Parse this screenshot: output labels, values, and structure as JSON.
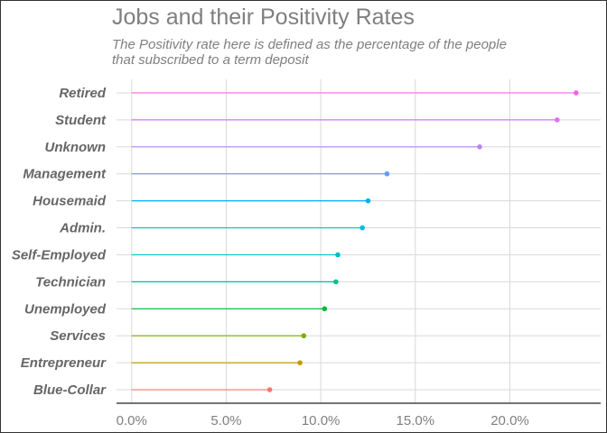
{
  "chart_data": {
    "type": "lollipop",
    "title": "Jobs and their Positivity Rates",
    "subtitle": "The Positivity rate here is defined as the percentage of the people\n that subscribed to a term deposit",
    "xlim": [
      -0.8,
      24.8
    ],
    "x_ticks": [
      0,
      5,
      10,
      15,
      20
    ],
    "x_tick_labels": [
      "0.0%",
      "5.0%",
      "10.0%",
      "15.0%",
      "20.0%"
    ],
    "grid": true,
    "categories": [
      "Retired",
      "Student",
      "Unknown",
      "Management",
      "Housemaid",
      "Admin.",
      "Self-Employed",
      "Technician",
      "Unemployed",
      "Services",
      "Entrepreneur",
      "Blue-Collar"
    ],
    "values": [
      23.5,
      22.5,
      18.4,
      13.5,
      12.5,
      12.2,
      10.9,
      10.8,
      10.2,
      9.1,
      8.9,
      7.3
    ],
    "colors": [
      "#f564e3",
      "#d973f0",
      "#b983ff",
      "#619cff",
      "#00b0f6",
      "#00bcd8",
      "#00bfc4",
      "#00c094",
      "#00ba38",
      "#7cae00",
      "#c49a00",
      "#f8766d"
    ]
  }
}
